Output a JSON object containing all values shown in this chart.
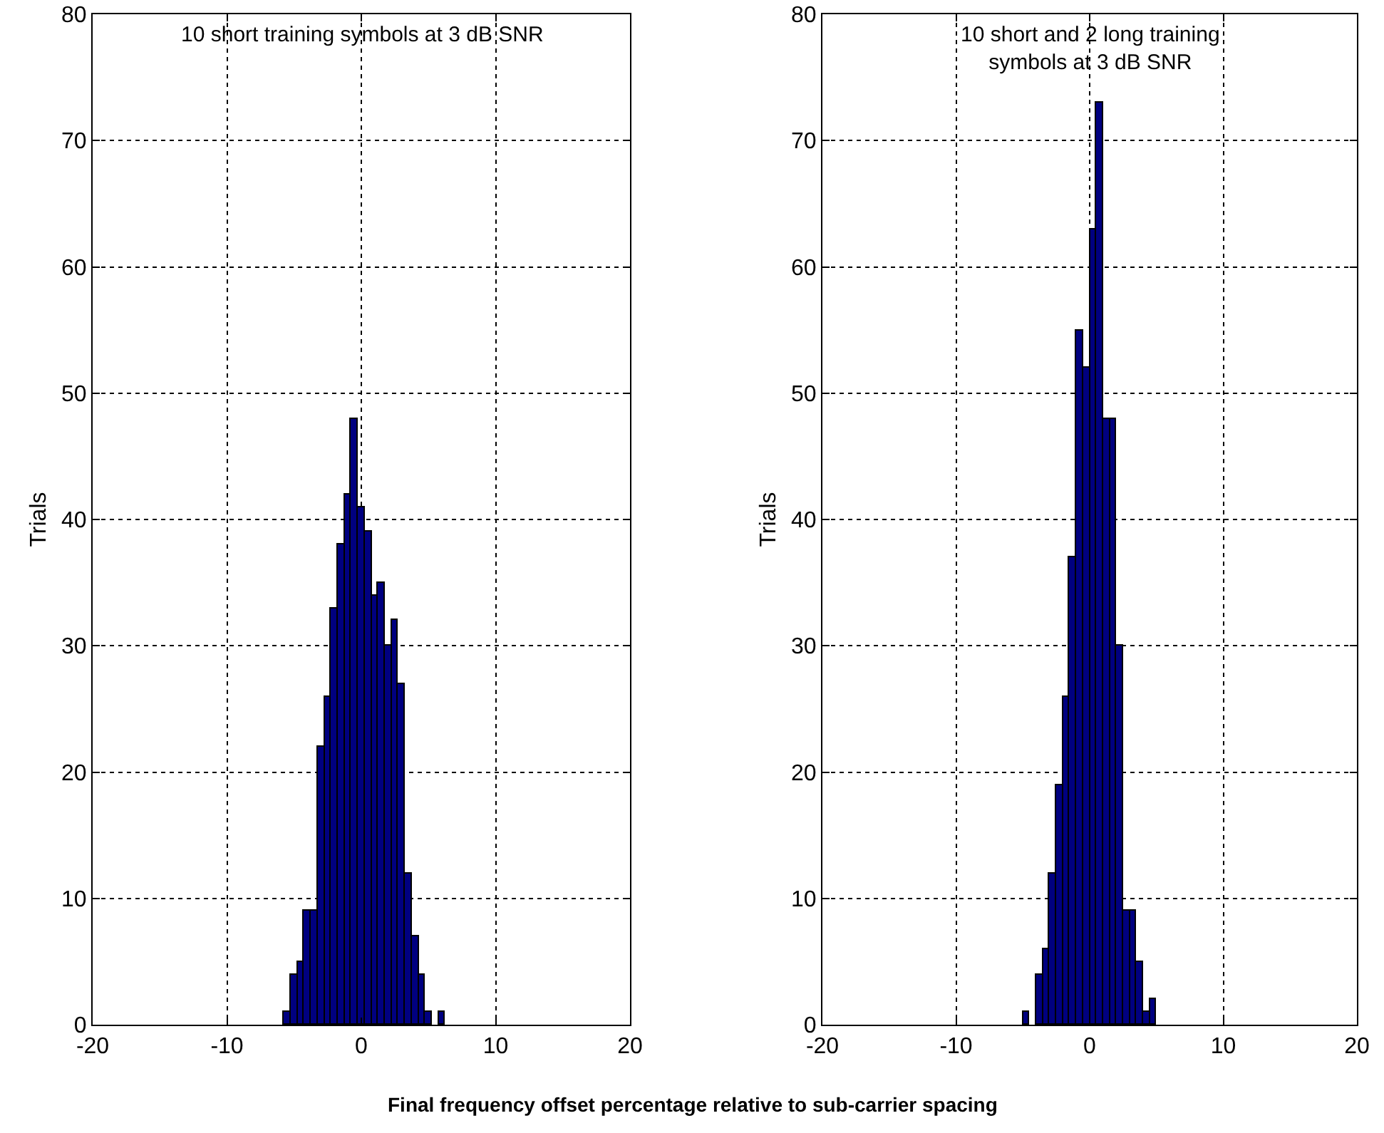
{
  "chart_data": [
    {
      "type": "histogram",
      "title": "10 short training symbols at 3 dB SNR",
      "xlabel": "Final frequency offset percentage relative to sub-carrier spacing",
      "ylabel": "Trials",
      "bins": [
        -5.75,
        -5.25,
        -4.75,
        -4.25,
        -3.75,
        -3.25,
        -2.75,
        -2.25,
        -1.75,
        -1.25,
        -0.75,
        -0.25,
        0.25,
        0.75,
        1.25,
        1.75,
        2.25,
        2.75,
        3.25,
        3.75,
        4.25,
        4.75,
        5.25,
        5.75,
        6.25
      ],
      "values": [
        1,
        4,
        5,
        9,
        9,
        22,
        26,
        33,
        38,
        42,
        48,
        41,
        39,
        34,
        35,
        30,
        32,
        27,
        12,
        7,
        4,
        1,
        0,
        1
      ],
      "color": "#000080",
      "xlim": [
        -20,
        20
      ],
      "xticks": [
        -20,
        -10,
        0,
        10,
        20
      ],
      "ylim": [
        0,
        80
      ],
      "yticks": [
        0,
        10,
        20,
        30,
        40,
        50,
        60,
        70,
        80
      ],
      "grid": true,
      "legend": false
    },
    {
      "type": "histogram",
      "title": "10 short and 2 long training\nsymbols at 3 dB SNR",
      "ylabel": "Trials",
      "bins": [
        -5,
        -4.5,
        -4,
        -3.5,
        -3,
        -2.5,
        -2,
        -1.5,
        -1,
        -0.5,
        0,
        0.5,
        1,
        1.5,
        2,
        2.5,
        3,
        3.5,
        4,
        4.5,
        5
      ],
      "values": [
        1,
        0,
        4,
        6,
        12,
        19,
        26,
        37,
        55,
        52,
        63,
        73,
        48,
        48,
        30,
        9,
        9,
        5,
        1,
        2
      ],
      "color": "#000080",
      "xlim": [
        -20,
        20
      ],
      "xticks": [
        -20,
        -10,
        0,
        10,
        20
      ],
      "ylim": [
        0,
        80
      ],
      "yticks": [
        0,
        10,
        20,
        30,
        40,
        50,
        60,
        70,
        80
      ],
      "grid": true,
      "legend": false
    }
  ]
}
